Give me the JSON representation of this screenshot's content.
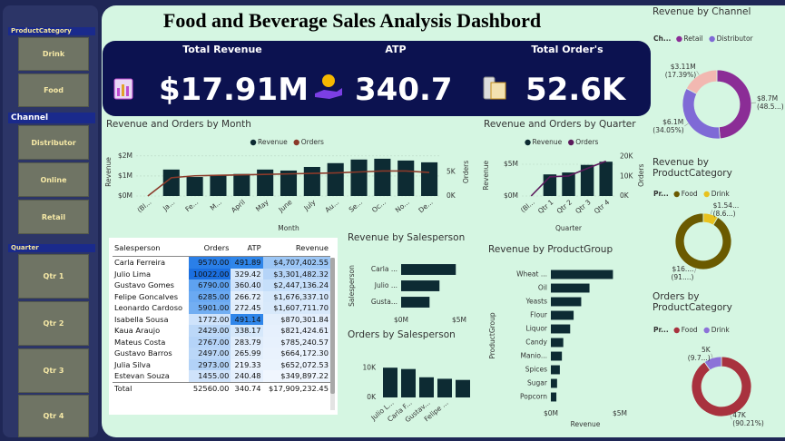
{
  "title": "Food and Beverage Sales Analysis Dashbord",
  "slicers": [
    {
      "title": "ProductCategory",
      "items": [
        "Drink",
        "Food"
      ]
    },
    {
      "title": "Channel",
      "items": [
        "Distributor",
        "Online",
        "Retail"
      ]
    },
    {
      "title": "Quarter",
      "items": [
        "Qtr 1",
        "Qtr 2",
        "Qtr 3",
        "Qtr 4"
      ]
    }
  ],
  "kpis": [
    {
      "label": "Total Revenue",
      "value": "$17.91M"
    },
    {
      "label": "ATP",
      "value": "340.7"
    },
    {
      "label": "Total Order's",
      "value": "52.6K"
    }
  ],
  "table": {
    "header": [
      "Salesperson",
      "Orders",
      "ATP",
      "Revenue"
    ],
    "rows": [
      [
        "Carla Ferreira",
        "9570.00",
        "491.89",
        "$4,707,402.55"
      ],
      [
        "Julio Lima",
        "10022.00",
        "329.42",
        "$3,301,482.32"
      ],
      [
        "Gustavo Gomes",
        "6790.00",
        "360.40",
        "$2,447,136.24"
      ],
      [
        "Felipe Goncalves",
        "6285.00",
        "266.72",
        "$1,676,337.10"
      ],
      [
        "Leonardo Cardoso",
        "5901.00",
        "272.45",
        "$1,607,711.70"
      ],
      [
        "Isabella Sousa",
        "1772.00",
        "491.14",
        "$870,301.84"
      ],
      [
        "Kaua Araujo",
        "2429.00",
        "338.17",
        "$821,424.61"
      ],
      [
        "Mateus Costa",
        "2767.00",
        "283.79",
        "$785,240.57"
      ],
      [
        "Gustavo Barros",
        "2497.00",
        "265.99",
        "$664,172.30"
      ],
      [
        "Julia Silva",
        "2973.00",
        "219.33",
        "$652,072.53"
      ],
      [
        "Estevan Souza",
        "1455.00",
        "240.48",
        "$349,897.22"
      ]
    ],
    "total": [
      "Total",
      "52560.00",
      "340.74",
      "$17,909,232.45"
    ]
  },
  "chart_data": [
    {
      "type": "combo",
      "title": "Revenue and Orders by Month",
      "x_label": "Month",
      "y_label": "Revenue",
      "y2_label": "Orders",
      "grid": true,
      "categories": [
        "(Bl...",
        "Ja...",
        "Fe...",
        "M...",
        "April",
        "May",
        "June",
        "July",
        "Au...",
        "Se...",
        "Oc...",
        "No...",
        "De..."
      ],
      "series": [
        {
          "name": "Revenue",
          "color": "#0d2b33",
          "values": [
            0,
            1320000,
            950000,
            1050000,
            1100000,
            1320000,
            1270000,
            1450000,
            1640000,
            1820000,
            1860000,
            1770000,
            1680000
          ]
        },
        {
          "name": "Orders",
          "color": "#8b3a2a",
          "axis": "y2",
          "values": [
            0,
            3800,
            4200,
            4300,
            4400,
            4500,
            4600,
            4700,
            4800,
            5000,
            5200,
            5200,
            4900
          ]
        }
      ],
      "ylim": [
        0,
        2400000
      ],
      "yticks": [
        {
          "value": 0,
          "label": "$0M"
        },
        {
          "value": 1000000,
          "label": "$1M"
        },
        {
          "value": 2000000,
          "label": "$2M"
        }
      ],
      "y2lim": [
        0,
        10000
      ],
      "y2ticks": [
        {
          "value": 0,
          "label": "0K"
        },
        {
          "value": 5000,
          "label": "5K"
        }
      ]
    },
    {
      "type": "combo",
      "title": "Revenue and Orders by Quarter",
      "x_label": "Quarter",
      "y_label": "Revenue",
      "y2_label": "Orders",
      "grid": true,
      "categories": [
        "(Bl...",
        "Qtr 1",
        "Qtr 2",
        "Qtr 3",
        "Qtr 4"
      ],
      "series": [
        {
          "name": "Revenue",
          "color": "#0d2b33",
          "values": [
            0,
            3400000,
            3700000,
            4900000,
            5400000
          ]
        },
        {
          "name": "Orders",
          "color": "#5c1a5c",
          "axis": "y2",
          "values": [
            0,
            9800,
            10200,
            14000,
            17700
          ]
        }
      ],
      "ylim": [
        0,
        6500000
      ],
      "yticks": [
        {
          "value": 0,
          "label": "$0M"
        },
        {
          "value": 5000000,
          "label": "$5M"
        }
      ],
      "y2lim": [
        0,
        21000
      ],
      "y2ticks": [
        {
          "value": 0,
          "label": "0K"
        },
        {
          "value": 10000,
          "label": "10K"
        },
        {
          "value": 20000,
          "label": "20K"
        }
      ]
    },
    {
      "type": "donut",
      "title": "Revenue by Channel",
      "legend_title": "Ch...",
      "categories": [
        "Retail",
        "Distributor",
        null
      ],
      "values": [
        8700000,
        6100000,
        3110000
      ],
      "value_labels": [
        "$8.7M (48.5...)",
        "$6.1M (34.05%)",
        "$3.11M (17.39%)"
      ],
      "colors": [
        "#8b2d96",
        "#7f6ad6",
        "#f2b8b1"
      ]
    },
    {
      "type": "donut",
      "title": "Revenue by ProductCategory",
      "legend_title": "Pr...",
      "categories": [
        "Food",
        "Drink"
      ],
      "values": [
        16370000,
        1540000
      ],
      "value_labels": [
        "$16.... (91....)",
        "$1.54... (8.6...)"
      ],
      "colors": [
        "#6b5a00",
        "#e8c21e"
      ]
    },
    {
      "type": "donut",
      "title": "Orders by ProductCategory",
      "legend_title": "Pr...",
      "categories": [
        "Food",
        "Drink"
      ],
      "values": [
        47000,
        5000
      ],
      "value_labels": [
        "47K (90.21%)",
        "5K (9.7...)"
      ],
      "colors": [
        "#a8323e",
        "#8c72d8"
      ]
    },
    {
      "type": "hbar",
      "title": "Revenue by Salesperson",
      "y_label": "Salesperson",
      "color": "#0d2b33",
      "categories": [
        "Carla ...",
        "Julio ...",
        "Gusta..."
      ],
      "values": [
        4707402.55,
        3301482.32,
        2447136.24
      ],
      "xlim": [
        0,
        5000000
      ],
      "xticks": [
        {
          "value": 0,
          "label": "$0M"
        },
        {
          "value": 5000000,
          "label": "$5M"
        }
      ]
    },
    {
      "type": "bar",
      "title": "Orders by Salesperson",
      "color": "#0d2b33",
      "categories": [
        "Julio L...",
        "Carla F...",
        "Gustav...",
        "Felipe ...",
        null
      ],
      "values": [
        10022,
        9570,
        6790,
        6285,
        5901
      ],
      "ylim": [
        0,
        11000
      ],
      "yticks": [
        {
          "value": 0,
          "label": "0K"
        },
        {
          "value": 10000,
          "label": "10K"
        }
      ]
    },
    {
      "type": "hbar",
      "title": "Revenue by ProductGroup",
      "y_label": "ProductGroup",
      "x_label": "Revenue",
      "color": "#0d2b33",
      "categories": [
        "Wheat ...",
        "Oil",
        "Yeasts",
        "Flour",
        "Liquor",
        "Candy",
        "Manio...",
        "Spices",
        "Sugar",
        "Popcorn"
      ],
      "values": [
        4500000,
        2800000,
        2200000,
        1650000,
        1400000,
        900000,
        800000,
        650000,
        450000,
        400000
      ],
      "xlim": [
        0,
        5000000
      ],
      "xticks": [
        {
          "value": 0,
          "label": "$0M"
        },
        {
          "value": 5000000,
          "label": "$5M"
        }
      ]
    }
  ]
}
